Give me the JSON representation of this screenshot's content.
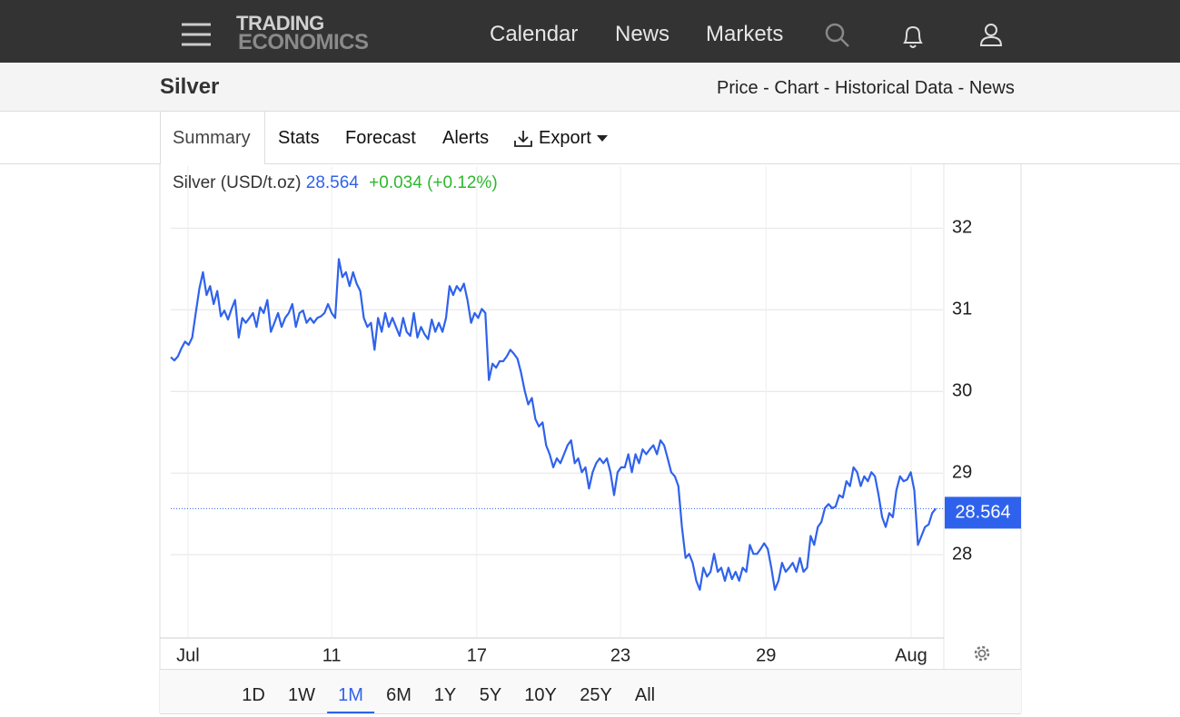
{
  "nav": {
    "logo_top": "TRADING",
    "logo_bottom": "ECONOMICS",
    "links": [
      "Calendar",
      "News",
      "Markets"
    ]
  },
  "header": {
    "title": "Silver",
    "breadcrumb": "Price - Chart - Historical Data - News"
  },
  "tabs": [
    "Summary",
    "Stats",
    "Forecast",
    "Alerts",
    "Export"
  ],
  "chart_data": {
    "type": "line",
    "series_label": "Silver (USD/t.oz)",
    "last_price": 28.564,
    "change": "+0.034 (+0.12%)",
    "series": [
      {
        "name": "Silver",
        "color": "#2f62ec",
        "values": [
          30.42,
          30.38,
          30.43,
          30.53,
          30.61,
          30.57,
          30.66,
          30.96,
          31.26,
          31.46,
          31.18,
          31.29,
          31.07,
          31.23,
          30.92,
          30.99,
          30.88,
          31.01,
          31.12,
          30.66,
          30.9,
          30.84,
          30.9,
          30.96,
          30.79,
          31.03,
          30.96,
          31.12,
          30.73,
          30.84,
          30.96,
          30.79,
          30.9,
          30.96,
          31.07,
          30.79,
          30.96,
          30.99,
          30.84,
          30.9,
          30.84,
          30.9,
          30.92,
          30.96,
          31.07,
          30.96,
          30.9,
          31.62,
          31.4,
          31.46,
          31.29,
          31.46,
          31.32,
          31.23,
          30.9,
          30.79,
          30.84,
          30.51,
          30.9,
          30.73,
          30.96,
          30.79,
          30.9,
          30.79,
          30.68,
          30.9,
          30.73,
          30.68,
          30.96,
          30.66,
          30.79,
          30.7,
          30.64,
          30.88,
          30.73,
          30.84,
          30.73,
          30.9,
          31.29,
          31.18,
          31.29,
          31.23,
          31.32,
          31.12,
          30.84,
          30.96,
          30.9,
          31.01,
          30.96,
          30.14,
          30.34,
          30.29,
          30.37,
          30.37,
          30.43,
          30.51,
          30.46,
          30.4,
          30.23,
          30.01,
          29.84,
          29.92,
          29.66,
          29.57,
          29.62,
          29.34,
          29.23,
          29.07,
          29.18,
          29.12,
          29.23,
          29.34,
          29.4,
          29.12,
          29.18,
          29.01,
          29.07,
          28.81,
          29.01,
          29.12,
          29.18,
          29.12,
          29.18,
          29.01,
          28.73,
          29.01,
          29.07,
          29.07,
          29.23,
          29.01,
          29.23,
          29.12,
          29.29,
          29.23,
          29.29,
          29.34,
          29.23,
          29.4,
          29.34,
          29.18,
          29.01,
          28.96,
          28.84,
          28.34,
          27.96,
          28.01,
          27.9,
          27.68,
          27.57,
          27.84,
          27.73,
          27.79,
          28.01,
          27.79,
          27.84,
          27.68,
          27.84,
          27.7,
          27.79,
          27.68,
          27.84,
          27.79,
          28.12,
          28.01,
          28.01,
          28.07,
          28.14,
          28.07,
          27.84,
          27.57,
          27.68,
          27.9,
          27.79,
          27.84,
          27.9,
          27.79,
          27.96,
          27.79,
          27.84,
          28.23,
          28.12,
          28.34,
          28.4,
          28.57,
          28.62,
          28.57,
          28.59,
          28.73,
          28.7,
          28.9,
          28.84,
          29.07,
          29.01,
          28.84,
          28.96,
          28.9,
          29.01,
          28.96,
          28.73,
          28.46,
          28.34,
          28.51,
          28.46,
          28.79,
          28.96,
          28.9,
          28.92,
          29.01,
          28.79,
          28.12,
          28.23,
          28.34,
          28.37,
          28.51,
          28.564
        ]
      }
    ],
    "xlim": [
      0,
      216
    ],
    "xticks": [
      {
        "value": 4.8,
        "label": "Jul"
      },
      {
        "value": 45,
        "label": "11"
      },
      {
        "value": 85.6,
        "label": "17"
      },
      {
        "value": 125.8,
        "label": "23"
      },
      {
        "value": 166.5,
        "label": "29"
      },
      {
        "value": 207.1,
        "label": "Aug"
      }
    ],
    "ylim": [
      26.99,
      32.76
    ],
    "yticks": [
      28,
      29,
      30,
      31,
      32
    ],
    "grid": true
  },
  "ranges": [
    "1D",
    "1W",
    "1M",
    "6M",
    "1Y",
    "5Y",
    "10Y",
    "25Y",
    "All"
  ]
}
